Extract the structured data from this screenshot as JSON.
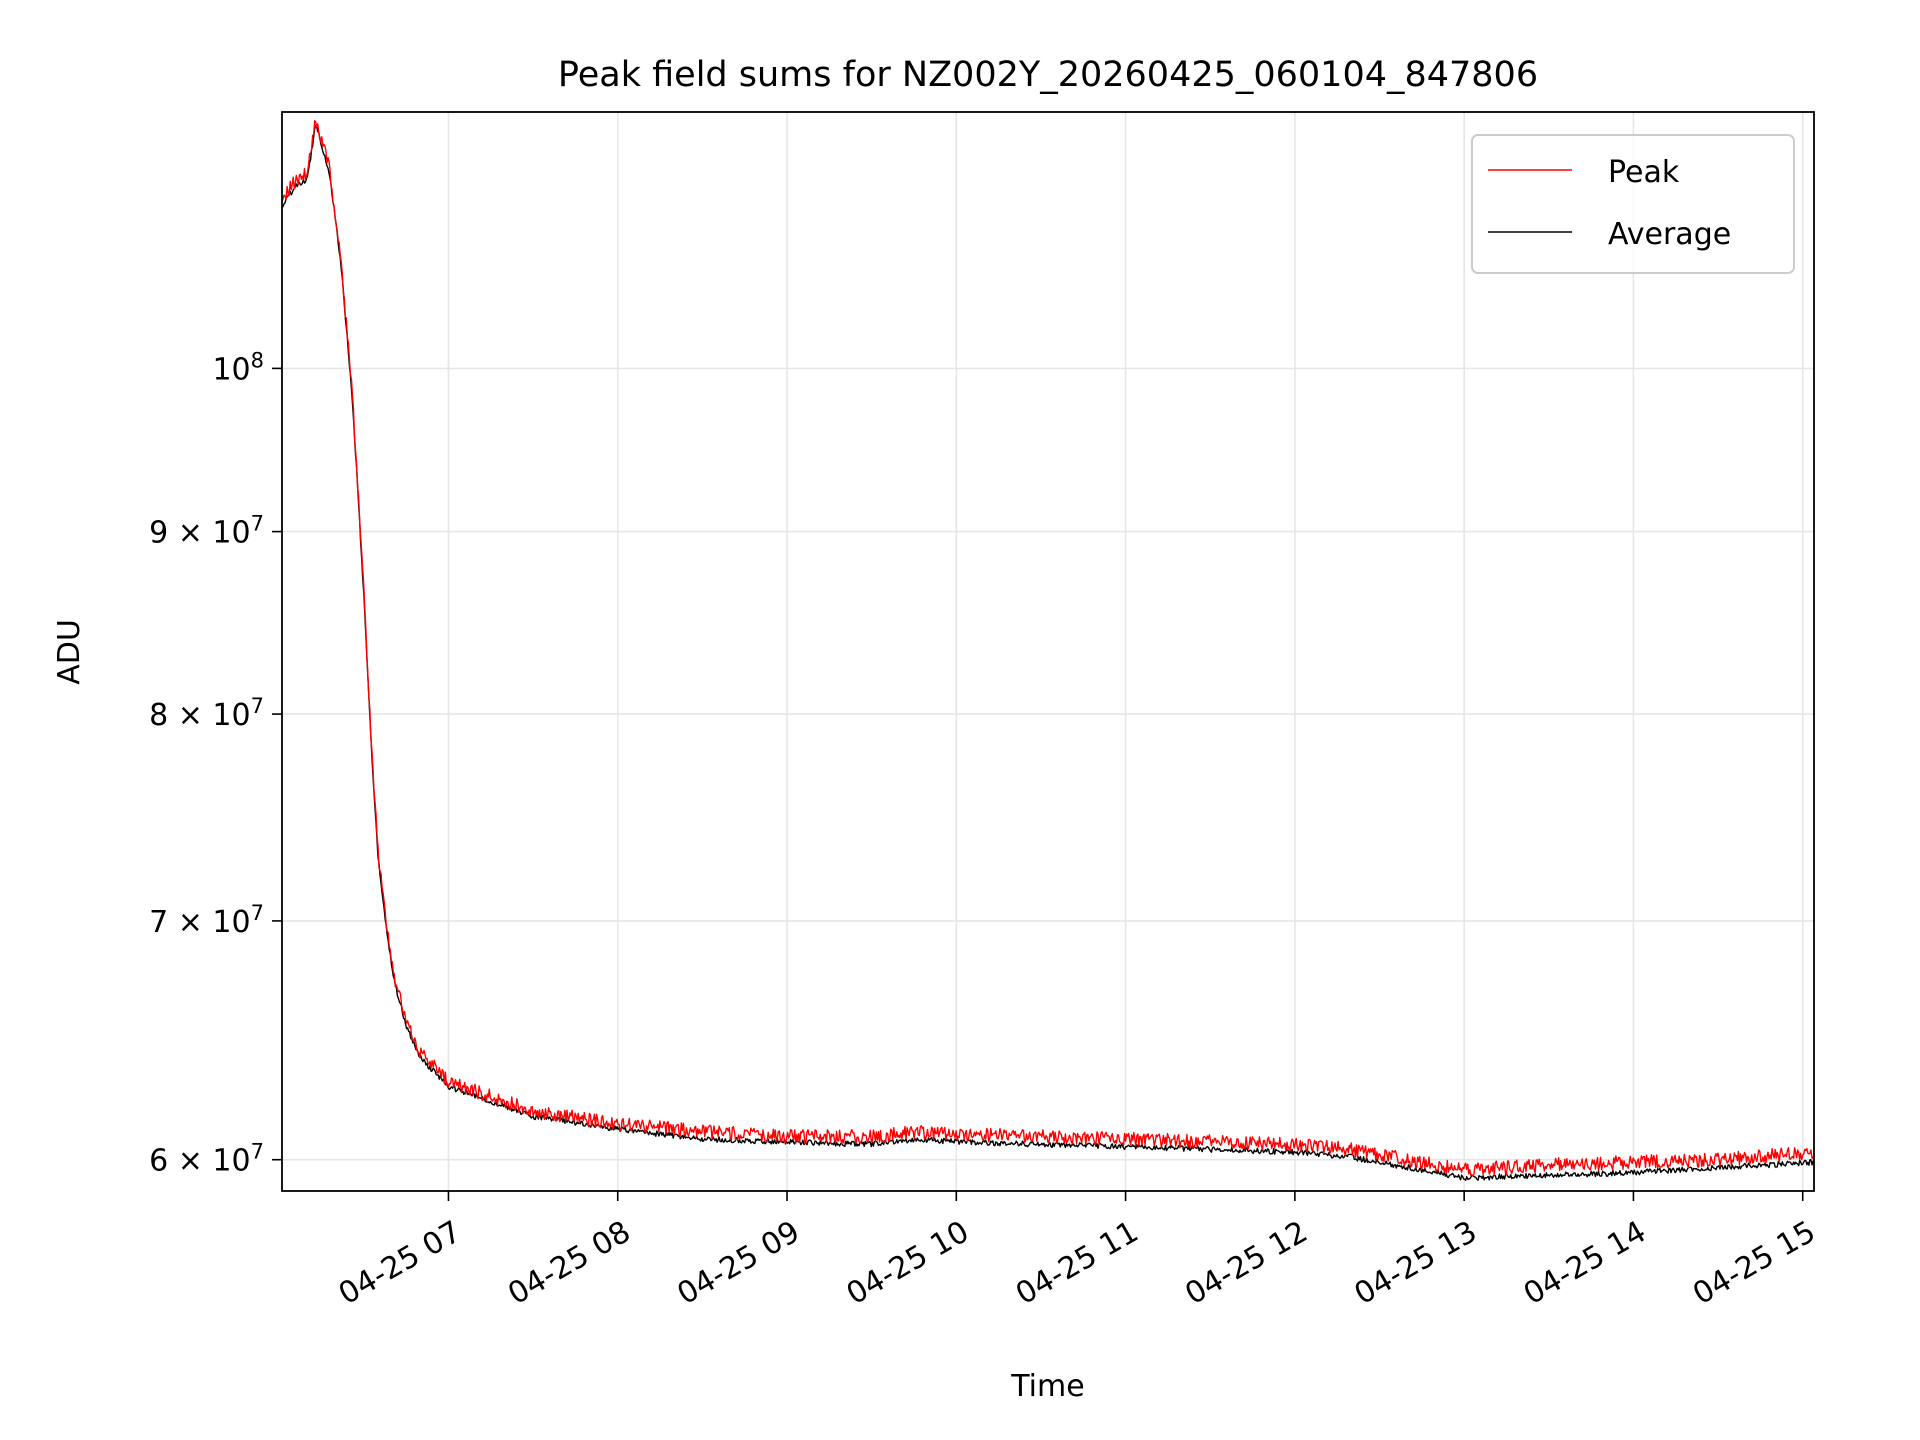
{
  "chart_data": {
    "type": "line",
    "title": "Peak field sums for NZ002Y_20260425_060104_847806",
    "xlabel": "Time",
    "ylabel": "ADU",
    "y_scale": "log",
    "ylim": [
      58800000,
      118000000
    ],
    "xlim": [
      "2026-04-25 06:01",
      "2026-04-25 15:04"
    ],
    "grid": true,
    "legend_position": "upper right",
    "x_ticks": [
      "04-25 07",
      "04-25 08",
      "04-25 09",
      "04-25 10",
      "04-25 11",
      "04-25 12",
      "04-25 13",
      "04-25 14",
      "04-25 15"
    ],
    "y_ticks": [
      {
        "value": 100000000,
        "mant": "10",
        "exp": "8"
      },
      {
        "value": 90000000,
        "mant": "9 × 10",
        "exp": "7"
      },
      {
        "value": 80000000,
        "mant": "8 × 10",
        "exp": "7"
      },
      {
        "value": 70000000,
        "mant": "7 × 10",
        "exp": "7"
      },
      {
        "value": 60000000,
        "mant": "6 × 10",
        "exp": "7"
      }
    ],
    "series": [
      {
        "name": "Peak",
        "color": "#ff0000",
        "x": [
          "2026-04-25 06:01",
          "2026-04-25 06:05",
          "2026-04-25 06:10",
          "2026-04-25 06:13",
          "2026-04-25 06:18",
          "2026-04-25 06:22",
          "2026-04-25 06:26",
          "2026-04-25 06:30",
          "2026-04-25 06:33",
          "2026-04-25 06:35",
          "2026-04-25 06:38",
          "2026-04-25 06:41",
          "2026-04-25 06:45",
          "2026-04-25 06:50",
          "2026-04-25 06:55",
          "2026-04-25 07:00",
          "2026-04-25 07:15",
          "2026-04-25 07:30",
          "2026-04-25 08:00",
          "2026-04-25 08:30",
          "2026-04-25 09:00",
          "2026-04-25 09:30",
          "2026-04-25 09:45",
          "2026-04-25 10:00",
          "2026-04-25 10:30",
          "2026-04-25 11:00",
          "2026-04-25 11:30",
          "2026-04-25 12:00",
          "2026-04-25 12:20",
          "2026-04-25 12:40",
          "2026-04-25 13:00",
          "2026-04-25 13:30",
          "2026-04-25 14:00",
          "2026-04-25 14:30",
          "2026-04-25 15:04"
        ],
        "y": [
          111500000,
          112700000,
          113500000,
          117500000,
          113500000,
          107000000,
          98000000,
          86500000,
          77500000,
          73200000,
          69800000,
          67400000,
          65600000,
          64300000,
          63700000,
          63100000,
          62500000,
          61900000,
          61400000,
          61100000,
          60900000,
          60900000,
          61100000,
          61000000,
          60900000,
          60800000,
          60700000,
          60600000,
          60400000,
          60000000,
          59600000,
          59800000,
          59900000,
          60000000,
          60300000
        ]
      },
      {
        "name": "Average",
        "color": "#000000",
        "x": [
          "2026-04-25 06:01",
          "2026-04-25 06:05",
          "2026-04-25 06:10",
          "2026-04-25 06:13",
          "2026-04-25 06:18",
          "2026-04-25 06:22",
          "2026-04-25 06:26",
          "2026-04-25 06:30",
          "2026-04-25 06:33",
          "2026-04-25 06:35",
          "2026-04-25 06:38",
          "2026-04-25 06:41",
          "2026-04-25 06:45",
          "2026-04-25 06:50",
          "2026-04-25 06:55",
          "2026-04-25 07:00",
          "2026-04-25 07:15",
          "2026-04-25 07:30",
          "2026-04-25 08:00",
          "2026-04-25 08:30",
          "2026-04-25 09:00",
          "2026-04-25 09:30",
          "2026-04-25 09:45",
          "2026-04-25 10:00",
          "2026-04-25 10:30",
          "2026-04-25 11:00",
          "2026-04-25 11:30",
          "2026-04-25 12:00",
          "2026-04-25 12:20",
          "2026-04-25 12:40",
          "2026-04-25 13:00",
          "2026-04-25 13:30",
          "2026-04-25 14:00",
          "2026-04-25 14:30",
          "2026-04-25 15:04"
        ],
        "y": [
          111000000,
          112300000,
          113000000,
          117200000,
          113200000,
          106700000,
          97800000,
          86300000,
          77300000,
          73000000,
          69600000,
          67200000,
          65400000,
          64100000,
          63500000,
          62900000,
          62300000,
          61700000,
          61200000,
          60800000,
          60700000,
          60600000,
          60800000,
          60700000,
          60600000,
          60500000,
          60400000,
          60300000,
          60100000,
          59700000,
          59300000,
          59400000,
          59500000,
          59700000,
          59900000
        ]
      }
    ]
  }
}
